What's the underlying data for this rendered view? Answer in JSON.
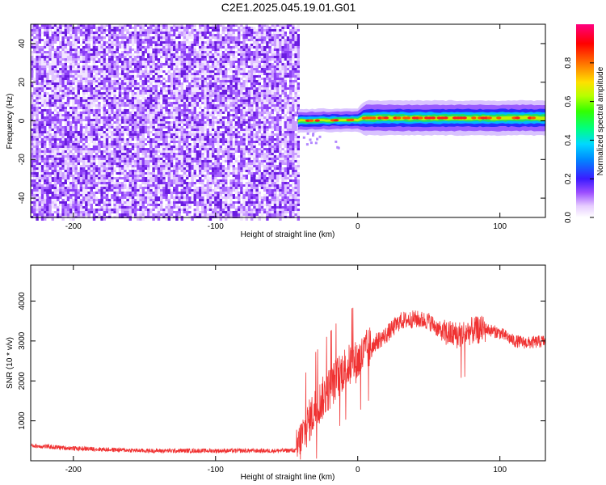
{
  "title": "C2E1.2025.045.19.01.G01",
  "chart_data": [
    {
      "type": "heatmap",
      "title": "C2E1.2025.045.19.01.G01",
      "xlabel": "Height of straight line (km)",
      "ylabel": "Frequency (Hz)",
      "xlim": [
        -230,
        132
      ],
      "ylim": [
        -50,
        50
      ],
      "x_ticks": [
        "-200",
        "-100",
        "0",
        "100"
      ],
      "y_ticks": [
        "-40",
        "-20",
        "0",
        "20",
        "40"
      ],
      "colorbar": {
        "label": "Normalized spectral amplitude",
        "range": [
          0,
          1
        ],
        "ticks": [
          "0.0",
          "0.2",
          "0.4",
          "0.6",
          "0.8"
        ]
      },
      "noise_region_x": [
        -230,
        -42
      ],
      "signal_band": [
        {
          "x": -42,
          "center_hz": 0,
          "halfwidth_hz": 3
        },
        {
          "x": 0,
          "center_hz": 0.5,
          "halfwidth_hz": 3
        },
        {
          "x": 5,
          "center_hz": 1.5,
          "halfwidth_hz": 4.5
        },
        {
          "x": 132,
          "center_hz": 1.5,
          "halfwidth_hz": 4.5
        }
      ]
    },
    {
      "type": "line",
      "xlabel": "Height of straight line (km)",
      "ylabel": "SNR (10 * v/v)",
      "xlim": [
        -230,
        132
      ],
      "ylim": [
        0,
        4900
      ],
      "x_ticks": [
        "-200",
        "-100",
        "0",
        "100"
      ],
      "y_ticks": [
        "1000",
        "2000",
        "3000",
        "4000"
      ],
      "color": "#f03232",
      "envelope": {
        "x": [
          -230,
          -200,
          -150,
          -100,
          -60,
          -43,
          -38,
          -30,
          -20,
          -10,
          0,
          10,
          20,
          30,
          40,
          50,
          60,
          70,
          80,
          90,
          100,
          110,
          120,
          132
        ],
        "y": [
          380,
          310,
          250,
          250,
          250,
          260,
          700,
          1300,
          1800,
          2300,
          2500,
          2900,
          3150,
          3500,
          3550,
          3500,
          3200,
          3150,
          3250,
          3300,
          3200,
          3000,
          2950,
          3000
        ]
      }
    }
  ]
}
